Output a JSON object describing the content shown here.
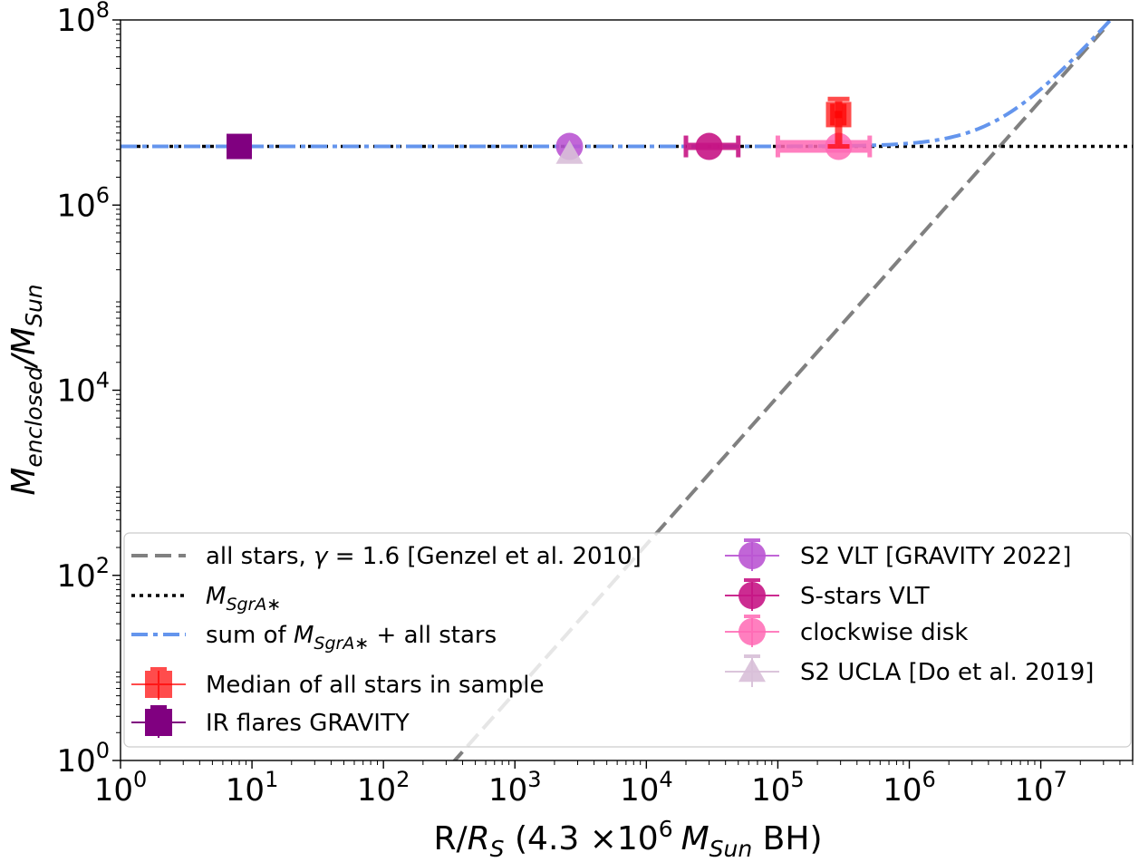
{
  "chart_data": {
    "type": "scatter",
    "xlabel": "R/R_S (4.3 ×10^6 M_Sun BH)",
    "xlabel_parts": {
      "a": "R/",
      "b": "R",
      "b_sub": "S",
      "c": " (4.3 ×10",
      "c_sup": "6",
      "d": "M",
      "d_sub": "Sun",
      "e": " BH)"
    },
    "ylabel": "M_enclosed/M_Sun",
    "ylabel_parts": {
      "a": "M",
      "a_sub": "enclosed",
      "b": "/M",
      "b_sub": "Sun"
    },
    "x_scale": "log",
    "y_scale": "log",
    "xlim": [
      1,
      50000000
    ],
    "ylim": [
      1,
      100000000
    ],
    "x_ticks": [
      {
        "value": 1,
        "base": "10",
        "exp": "0"
      },
      {
        "value": 10,
        "base": "10",
        "exp": "1"
      },
      {
        "value": 100,
        "base": "10",
        "exp": "2"
      },
      {
        "value": 1000,
        "base": "10",
        "exp": "3"
      },
      {
        "value": 10000,
        "base": "10",
        "exp": "4"
      },
      {
        "value": 100000,
        "base": "10",
        "exp": "5"
      },
      {
        "value": 1000000,
        "base": "10",
        "exp": "6"
      },
      {
        "value": 10000000,
        "base": "10",
        "exp": "7"
      }
    ],
    "y_ticks": [
      {
        "value": 1,
        "base": "10",
        "exp": "0"
      },
      {
        "value": 100,
        "base": "10",
        "exp": "2"
      },
      {
        "value": 10000,
        "base": "10",
        "exp": "4"
      },
      {
        "value": 1000000,
        "base": "10",
        "exp": "6"
      },
      {
        "value": 100000000,
        "base": "10",
        "exp": "8"
      }
    ],
    "lines": [
      {
        "key": "all_stars",
        "label": "all stars, γ = 1.6 [Genzel et al. 2010]",
        "color": "#808080",
        "dash": "dashed",
        "model": "power_law",
        "x_start": 330,
        "x_end": 30000000,
        "anchor_x": 10000,
        "anchor_y": 215,
        "slope": 1.6
      },
      {
        "key": "m_sgra",
        "label": "M_SgrA*",
        "color": "#000000",
        "dash": "dotted",
        "model": "constant",
        "y": 4300000
      },
      {
        "key": "sum",
        "label": "sum of M_SgrA* + all stars",
        "color": "#6495ED",
        "dash": "dashdot",
        "model": "sum"
      }
    ],
    "points": [
      {
        "key": "median",
        "label": "Median of all stars in sample",
        "x": 290000,
        "y": 9500000,
        "y_low": 4300000,
        "y_high": 14000000,
        "x_low": 260000,
        "x_high": 320000,
        "color": "#FF0000",
        "marker": "square",
        "alpha": 0.7
      },
      {
        "key": "ir_flares",
        "label": "IR flares GRAVITY",
        "x": 8,
        "y": 4300000,
        "x_low": 7,
        "x_high": 9,
        "y_low": 3500000,
        "y_high": 5200000,
        "color": "#800080",
        "marker": "square",
        "alpha": 1
      },
      {
        "key": "s2_vlt",
        "label": "S2 VLT [GRAVITY 2022]",
        "x": 2600,
        "y": 4300000,
        "color": "#BA55D3",
        "marker": "circle",
        "alpha": 0.9
      },
      {
        "key": "s_stars",
        "label": "S-stars VLT",
        "x": 30000,
        "y": 4300000,
        "x_low": 20000,
        "x_high": 50000,
        "color": "#C71585",
        "marker": "circle",
        "alpha": 0.9
      },
      {
        "key": "cw_disk",
        "label": "clockwise disk",
        "x": 290000,
        "y": 4300000,
        "x_low": 100000,
        "x_high": 500000,
        "color": "#FF69B4",
        "marker": "circle",
        "alpha": 0.85
      },
      {
        "key": "s2_ucla",
        "label": "S2 UCLA [Do et al. 2019]",
        "x": 2600,
        "y": 3600000,
        "color": "#D8BFD8",
        "marker": "triangle",
        "alpha": 0.9
      }
    ],
    "legend": {
      "placement": "lower-left",
      "columns": 2,
      "entries": [
        {
          "label": "all stars, γ = 1.6 [Genzel et al. 2010]",
          "parts": [
            {
              "t": "all stars, "
            },
            {
              "t": "γ",
              "i": true
            },
            {
              "t": " = 1.6 [Genzel et al. 2010]"
            }
          ],
          "type": "line",
          "ref": "all_stars"
        },
        {
          "label": "M_SgrA*",
          "parts": [
            {
              "t": "M",
              "i": true
            },
            {
              "t": "SgrA∗",
              "i": true,
              "sub": true
            }
          ],
          "type": "line",
          "ref": "m_sgra"
        },
        {
          "label": "sum of M_SgrA* + all stars",
          "parts": [
            {
              "t": "sum of "
            },
            {
              "t": "M",
              "i": true
            },
            {
              "t": "SgrA∗",
              "i": true,
              "sub": true
            },
            {
              "t": " + all stars"
            }
          ],
          "type": "line",
          "ref": "sum"
        },
        {
          "label": "Median of all stars in sample",
          "parts": [
            {
              "t": "Median of all stars in sample"
            }
          ],
          "type": "point",
          "ref": "median"
        },
        {
          "label": "IR flares GRAVITY",
          "parts": [
            {
              "t": "IR flares GRAVITY"
            }
          ],
          "type": "point",
          "ref": "ir_flares"
        },
        {
          "label": "S2 VLT [GRAVITY 2022]",
          "parts": [
            {
              "t": "S2 VLT [GRAVITY 2022]"
            }
          ],
          "type": "point",
          "ref": "s2_vlt"
        },
        {
          "label": "S-stars VLT",
          "parts": [
            {
              "t": "S-stars VLT"
            }
          ],
          "type": "point",
          "ref": "s_stars"
        },
        {
          "label": "clockwise disk",
          "parts": [
            {
              "t": "clockwise disk"
            }
          ],
          "type": "point",
          "ref": "cw_disk"
        },
        {
          "label": "S2 UCLA [Do et al. 2019]",
          "parts": [
            {
              "t": "S2 UCLA [Do et al. 2019]"
            }
          ],
          "type": "point",
          "ref": "s2_ucla"
        }
      ]
    },
    "grid": false
  }
}
